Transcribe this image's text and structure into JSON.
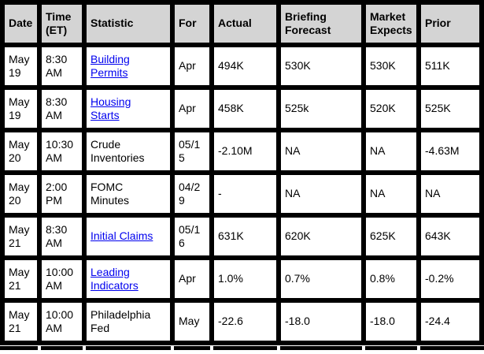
{
  "colors": {
    "border": "#000000",
    "header_bg": "#d4d4d4",
    "cell_bg": "#ffffff",
    "text": "#000000",
    "link_blue": "#0000ee"
  },
  "table": {
    "headers": [
      "Date",
      "Time (ET)",
      "Statistic",
      "For",
      "Actual",
      "Briefing Forecast",
      "Market Expects",
      "Prior"
    ],
    "rows": [
      {
        "date": "May 19",
        "time": "8:30 AM",
        "statistic": "Building Permits",
        "statistic_is_link": true,
        "for": "Apr",
        "actual": "494K",
        "briefing_forecast": "530K",
        "market_expects": "530K",
        "prior": "511K"
      },
      {
        "date": "May 19",
        "time": "8:30 AM",
        "statistic": "Housing Starts",
        "statistic_is_link": true,
        "for": "Apr",
        "actual": "458K",
        "briefing_forecast": "525k",
        "market_expects": "520K",
        "prior": "525K"
      },
      {
        "date": "May 20",
        "time": "10:30 AM",
        "statistic": "Crude Inventories",
        "statistic_is_link": false,
        "for": "05/15",
        "actual": "-2.10M",
        "briefing_forecast": "NA",
        "market_expects": "NA",
        "prior": "-4.63M"
      },
      {
        "date": "May 20",
        "time": "2:00 PM",
        "statistic": "FOMC Minutes",
        "statistic_is_link": false,
        "for": "04/29",
        "actual": "-",
        "briefing_forecast": "NA",
        "market_expects": "NA",
        "prior": "NA"
      },
      {
        "date": "May 21",
        "time": "8:30 AM",
        "statistic": "Initial Claims",
        "statistic_is_link": true,
        "for": "05/16",
        "actual": "631K",
        "briefing_forecast": "620K",
        "market_expects": "625K",
        "prior": "643K"
      },
      {
        "date": "May 21",
        "time": "10:00 AM",
        "statistic": "Leading Indicators",
        "statistic_is_link": true,
        "for": "Apr",
        "actual": "1.0%",
        "briefing_forecast": "0.7%",
        "market_expects": "0.8%",
        "prior": "-0.2%"
      },
      {
        "date": "May 21",
        "time": "10:00 AM",
        "statistic": "Philadelphia Fed",
        "statistic_is_link": false,
        "for": "May",
        "actual": "-22.6",
        "briefing_forecast": "-18.0",
        "market_expects": "-18.0",
        "prior": "-24.4"
      }
    ]
  }
}
